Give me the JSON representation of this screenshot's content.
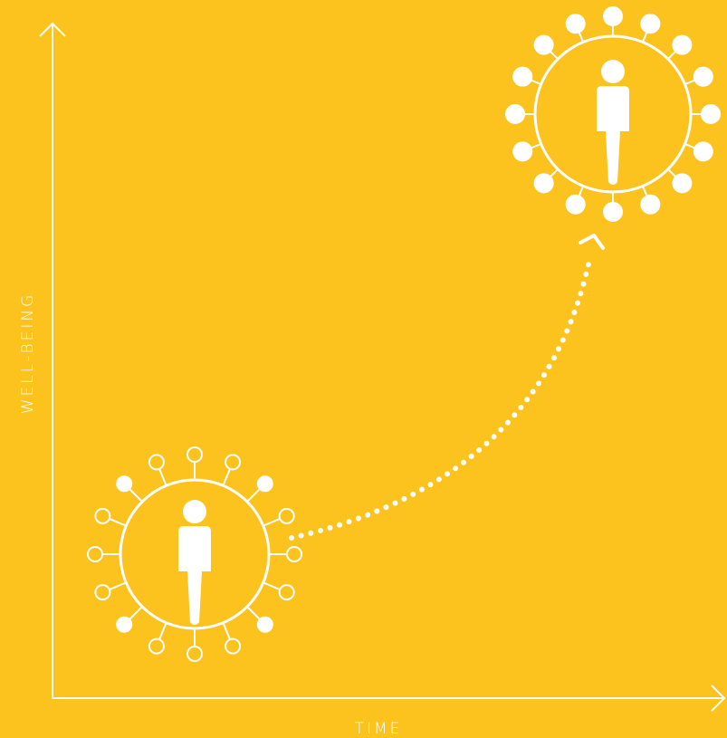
{
  "y_axis_label": "WELL-BEING",
  "x_axis_label": "TIME"
}
